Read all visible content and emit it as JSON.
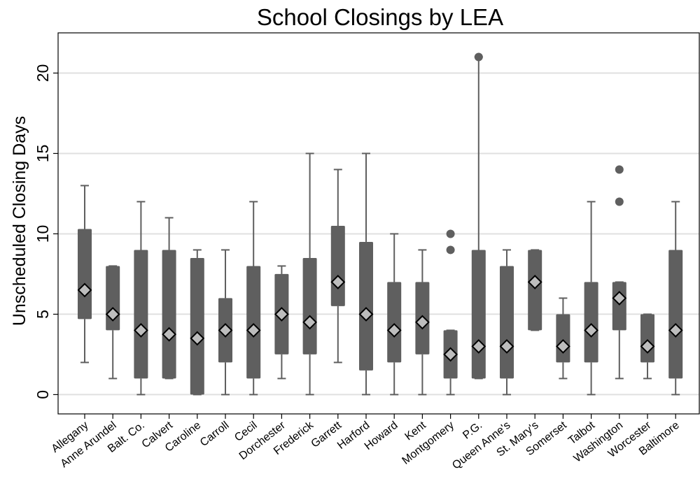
{
  "chart_data": {
    "type": "boxplot",
    "title": "School Closings by LEA",
    "ylabel": "Unscheduled Closing Days",
    "xlabel": "",
    "ylim": [
      -1.2,
      22.5
    ],
    "yticks": [
      0,
      5,
      10,
      15,
      20
    ],
    "grid": true,
    "legend": "none",
    "colors": {
      "box": "#5f5f5f",
      "whisker": "#5f5f5f",
      "outlier": "#5f5f5f",
      "mean_marker": "#bdbdbd",
      "grid": "#e0e0e0",
      "axis": "#000000"
    },
    "categories": [
      "Allegany",
      "Anne Arundel",
      "Balt. Co.",
      "Calvert",
      "Caroline",
      "Carroll",
      "Cecil",
      "Dorchester",
      "Frederick",
      "Garrett",
      "Harford",
      "Howard",
      "Kent",
      "Montgomery",
      "P.G.",
      "Queen Anne's",
      "St. Mary's",
      "Somerset",
      "Talbot",
      "Washington",
      "Worcester",
      "Baltimore"
    ],
    "boxes": [
      {
        "whisker_low": 2,
        "q1": 4.7,
        "q3": 10.3,
        "whisker_high": 13,
        "mean": 6.5,
        "outliers": []
      },
      {
        "whisker_low": 1,
        "q1": 4,
        "q3": 8,
        "whisker_high": 8,
        "mean": 5,
        "outliers": []
      },
      {
        "whisker_low": 0,
        "q1": 1,
        "q3": 9,
        "whisker_high": 12,
        "mean": 4,
        "outliers": []
      },
      {
        "whisker_low": 1,
        "q1": 1,
        "q3": 9,
        "whisker_high": 11,
        "mean": 3.75,
        "outliers": []
      },
      {
        "whisker_low": 0,
        "q1": 0,
        "q3": 8.5,
        "whisker_high": 9,
        "mean": 3.5,
        "outliers": []
      },
      {
        "whisker_low": 0,
        "q1": 2,
        "q3": 6,
        "whisker_high": 9,
        "mean": 4,
        "outliers": []
      },
      {
        "whisker_low": 0,
        "q1": 1,
        "q3": 8,
        "whisker_high": 12,
        "mean": 4,
        "outliers": []
      },
      {
        "whisker_low": 1,
        "q1": 2.5,
        "q3": 7.5,
        "whisker_high": 8,
        "mean": 5,
        "outliers": []
      },
      {
        "whisker_low": 0,
        "q1": 2.5,
        "q3": 8.5,
        "whisker_high": 15,
        "mean": 4.5,
        "outliers": []
      },
      {
        "whisker_low": 2,
        "q1": 5.5,
        "q3": 10.5,
        "whisker_high": 14,
        "mean": 7,
        "outliers": []
      },
      {
        "whisker_low": 0,
        "q1": 1.5,
        "q3": 9.5,
        "whisker_high": 15,
        "mean": 5,
        "outliers": []
      },
      {
        "whisker_low": 0,
        "q1": 2,
        "q3": 7,
        "whisker_high": 10,
        "mean": 4,
        "outliers": []
      },
      {
        "whisker_low": 0,
        "q1": 2.5,
        "q3": 7,
        "whisker_high": 9,
        "mean": 4.5,
        "outliers": []
      },
      {
        "whisker_low": 0,
        "q1": 1,
        "q3": 4,
        "whisker_high": 4,
        "mean": 2.5,
        "outliers": [
          9,
          10
        ]
      },
      {
        "whisker_low": 1,
        "q1": 1,
        "q3": 9,
        "whisker_high": 21,
        "mean": 3,
        "outliers": [
          21
        ]
      },
      {
        "whisker_low": 0,
        "q1": 1,
        "q3": 8,
        "whisker_high": 9,
        "mean": 3,
        "outliers": []
      },
      {
        "whisker_low": 4,
        "q1": 4,
        "q3": 9,
        "whisker_high": 9,
        "mean": 7,
        "outliers": []
      },
      {
        "whisker_low": 1,
        "q1": 2,
        "q3": 5,
        "whisker_high": 6,
        "mean": 3,
        "outliers": []
      },
      {
        "whisker_low": 0,
        "q1": 2,
        "q3": 7,
        "whisker_high": 12,
        "mean": 4,
        "outliers": []
      },
      {
        "whisker_low": 1,
        "q1": 4,
        "q3": 7,
        "whisker_high": 7,
        "mean": 6,
        "outliers": [
          12,
          14
        ]
      },
      {
        "whisker_low": 1,
        "q1": 2,
        "q3": 5,
        "whisker_high": 5,
        "mean": 3,
        "outliers": []
      },
      {
        "whisker_low": 0,
        "q1": 1,
        "q3": 9,
        "whisker_high": 12,
        "mean": 4,
        "outliers": []
      }
    ]
  }
}
